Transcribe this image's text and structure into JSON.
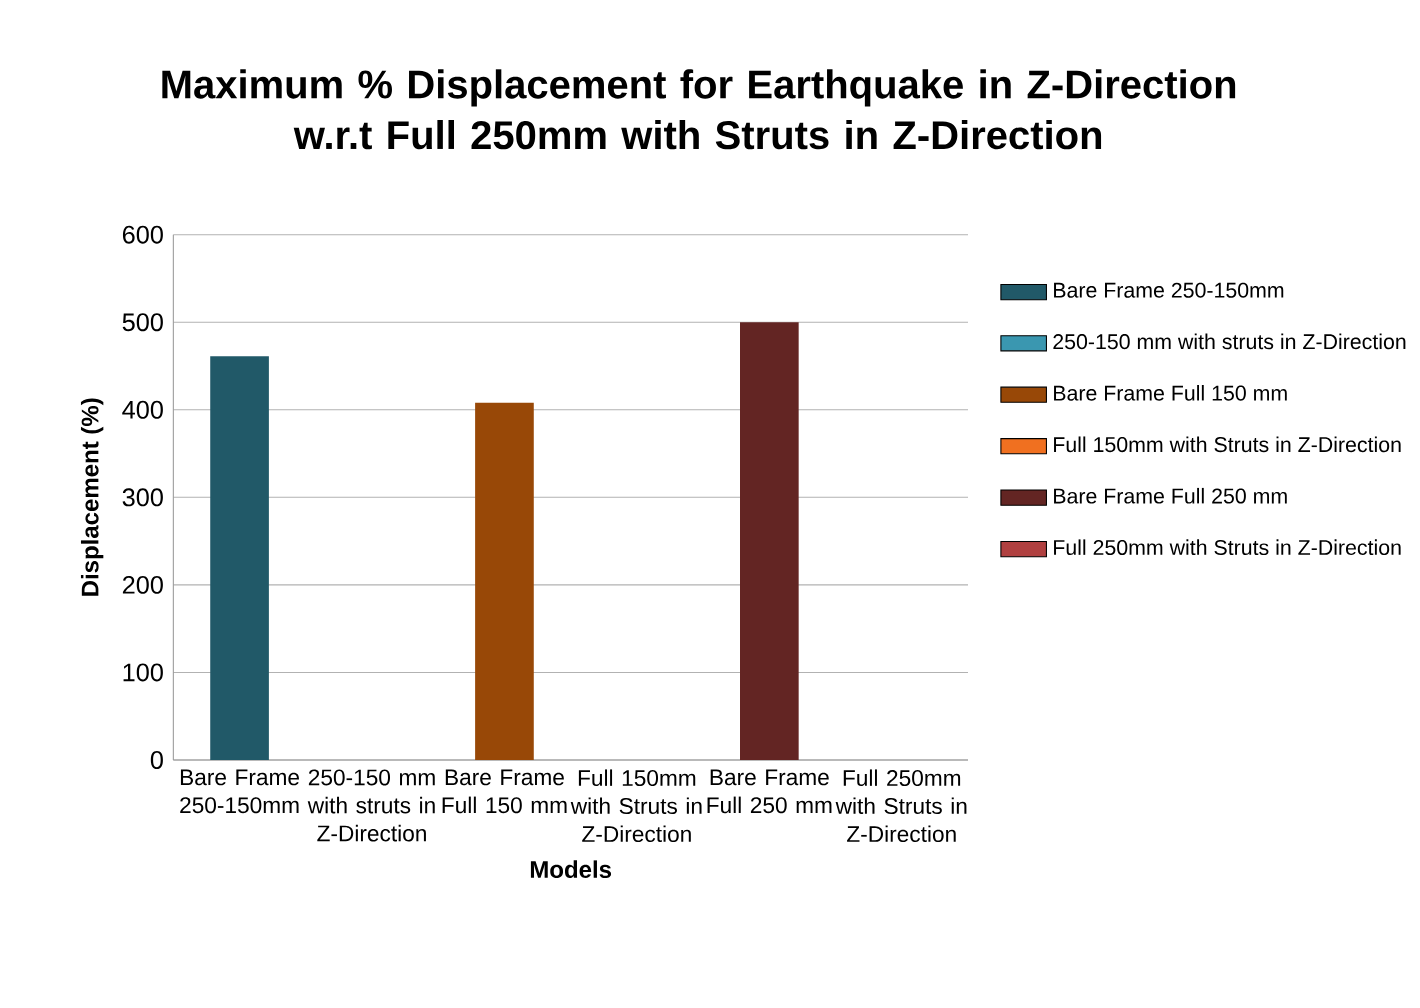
{
  "chart_data": {
    "type": "bar",
    "title": "Maximum % Displacement for Earthquake in Z-Direction\nw.r.t Full 250mm with Struts in Z-Direction",
    "xlabel": "Models",
    "ylabel": "Displacement (%)",
    "categories": [
      "Bare Frame 250-150mm",
      "250-150 mm with struts in Z-Direction",
      "Bare Frame Full 150 mm",
      "Full 150mm with Struts in Z-Direction",
      "Bare Frame Full 250 mm",
      "Full 250mm with Struts in Z-Direction"
    ],
    "series": [
      {
        "name": "Bare Frame 250-150mm",
        "color": "#215968",
        "values": [
          461,
          null,
          null,
          null,
          null,
          null
        ]
      },
      {
        "name": "250-150 mm with struts in Z-Direction",
        "color": "#3a97b0",
        "values": [
          null,
          0,
          null,
          null,
          null,
          null
        ]
      },
      {
        "name": "Bare Frame Full 150 mm",
        "color": "#984807",
        "values": [
          null,
          null,
          408,
          null,
          null,
          null
        ]
      },
      {
        "name": "Full 150mm with Struts in Z-Direction",
        "color": "#f07020",
        "values": [
          null,
          null,
          null,
          0,
          null,
          null
        ]
      },
      {
        "name": "Bare Frame Full 250 mm",
        "color": "#632523",
        "values": [
          null,
          null,
          null,
          null,
          500,
          null
        ]
      },
      {
        "name": "Full 250mm with Struts in Z-Direction",
        "color": "#b04040",
        "values": [
          null,
          null,
          null,
          null,
          null,
          0
        ]
      }
    ],
    "ylim": [
      0,
      600
    ],
    "yticks": [
      0,
      100,
      200,
      300,
      400,
      500,
      600
    ],
    "grid": "y",
    "legend": "right"
  }
}
